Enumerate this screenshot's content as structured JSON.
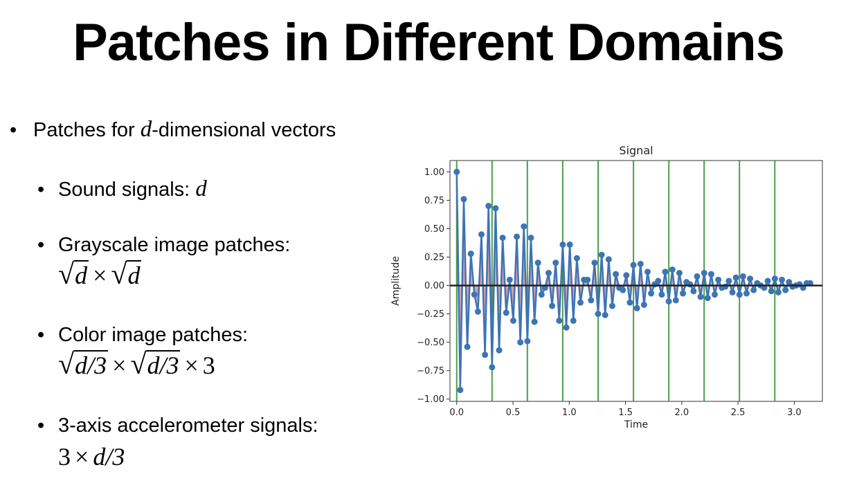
{
  "slide": {
    "title": "Patches in Different Domains",
    "bullet_main": {
      "prefix": "Patches for ",
      "var": "d",
      "suffix": "-dimensional vectors"
    },
    "sub_bullets": [
      {
        "label": "Sound signals: ",
        "math_var": "d"
      },
      {
        "label": "Grayscale image patches:"
      },
      {
        "label": "Color image patches:"
      },
      {
        "label": "3-axis accelerometer signals:"
      }
    ],
    "math": {
      "gray": {
        "a": "d",
        "times": "×",
        "b": "d"
      },
      "color": {
        "a": "d/3",
        "times1": "×",
        "b": "d/3",
        "times2": "×",
        "c": "3"
      },
      "accel": {
        "a": "3",
        "times": "×",
        "b": "d/3"
      }
    }
  },
  "chart_data": {
    "type": "line",
    "title": "Signal",
    "xlabel": "Time",
    "ylabel": "Amplitude",
    "xlim": [
      -0.06,
      3.25
    ],
    "ylim": [
      -1.02,
      1.1
    ],
    "xticks": [
      "0.0",
      "0.5",
      "1.0",
      "1.5",
      "2.0",
      "2.5",
      "3.0"
    ],
    "yticks": [
      "−1.00",
      "−0.75",
      "−0.50",
      "−0.25",
      "0.00",
      "0.25",
      "0.50",
      "0.75",
      "1.00"
    ],
    "grid": false,
    "zero_line": true,
    "vlines": [
      0.0,
      0.314,
      0.628,
      0.942,
      1.257,
      1.571,
      1.885,
      2.199,
      2.513,
      2.827
    ],
    "series": [
      {
        "style": "line-with-markers",
        "color": "#3d74b4",
        "x": [
          0.0,
          0.0314,
          0.0628,
          0.0942,
          0.1257,
          0.1571,
          0.1885,
          0.2199,
          0.2513,
          0.2827,
          0.3142,
          0.3456,
          0.377,
          0.4084,
          0.4398,
          0.4712,
          0.5027,
          0.5341,
          0.5655,
          0.5969,
          0.6283,
          0.6597,
          0.6912,
          0.7226,
          0.754,
          0.7854,
          0.8168,
          0.8482,
          0.8796,
          0.9111,
          0.9425,
          0.9739,
          1.0053,
          1.0367,
          1.0681,
          1.0996,
          1.131,
          1.1624,
          1.1938,
          1.2252,
          1.2566,
          1.2881,
          1.3195,
          1.3509,
          1.3823,
          1.4137,
          1.4451,
          1.4765,
          1.508,
          1.5394,
          1.5708,
          1.6022,
          1.6336,
          1.665,
          1.6965,
          1.7279,
          1.7593,
          1.7907,
          1.8221,
          1.8535,
          1.885,
          1.9164,
          1.9478,
          1.9792,
          2.0106,
          2.042,
          2.0735,
          2.1049,
          2.1363,
          2.1677,
          2.1991,
          2.2305,
          2.2619,
          2.2934,
          2.3248,
          2.3562,
          2.3876,
          2.419,
          2.4504,
          2.4819,
          2.5133,
          2.5447,
          2.5761,
          2.6075,
          2.6389,
          2.6704,
          2.7018,
          2.7332,
          2.7646,
          2.796,
          2.8274,
          2.8588,
          2.8903,
          2.9217,
          2.9531,
          2.9845,
          3.0159,
          3.0473,
          3.0788,
          3.1102,
          3.1416
        ],
        "y": [
          1.0,
          -0.92,
          0.76,
          -0.54,
          0.28,
          -0.08,
          -0.23,
          0.45,
          -0.61,
          0.7,
          -0.72,
          0.68,
          -0.57,
          0.42,
          -0.24,
          0.05,
          -0.31,
          0.43,
          -0.5,
          0.52,
          -0.49,
          0.42,
          -0.32,
          0.2,
          -0.08,
          -0.02,
          0.11,
          -0.18,
          0.2,
          -0.31,
          0.36,
          -0.37,
          0.36,
          -0.31,
          0.24,
          -0.15,
          0.05,
          0.05,
          -0.13,
          0.2,
          -0.25,
          0.27,
          -0.26,
          0.23,
          -0.18,
          0.1,
          -0.02,
          -0.04,
          0.09,
          -0.15,
          0.18,
          -0.2,
          0.19,
          -0.17,
          0.12,
          -0.07,
          0.01,
          0.04,
          -0.08,
          0.12,
          -0.14,
          0.14,
          -0.13,
          0.11,
          -0.07,
          0.03,
          0.01,
          -0.05,
          0.08,
          -0.1,
          0.11,
          -0.11,
          0.1,
          -0.08,
          0.05,
          -0.02,
          -0.01,
          0.04,
          -0.06,
          0.07,
          -0.08,
          0.08,
          -0.07,
          0.06,
          -0.04,
          0.02,
          0.0,
          -0.02,
          0.04,
          -0.05,
          0.06,
          -0.06,
          0.05,
          -0.04,
          0.03,
          -0.01,
          0.0,
          0.01,
          -0.02,
          0.02,
          0.02
        ]
      }
    ],
    "colors": {
      "signal": "#3d74b4",
      "vline": "#2e8b2e",
      "fill": "#c04f63",
      "zero_line": "#222222",
      "axes": "#333333"
    }
  }
}
